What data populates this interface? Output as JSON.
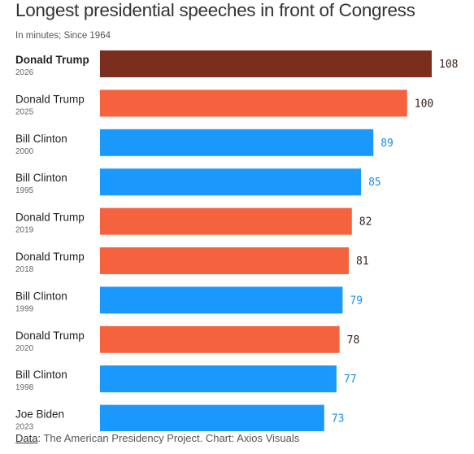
{
  "title": "Longest presidential speeches in front of Congress",
  "subtitle": "In minutes; Since 1964",
  "footer": {
    "data_link": "Data",
    "text": ": The American Presidency Project. Chart: Axios Visuals"
  },
  "colors": {
    "highlight": "#7b2d1e",
    "trump": "#f4623e",
    "clinton": "#1b98fb",
    "biden": "#1b98fb"
  },
  "chart_data": {
    "type": "bar",
    "orientation": "horizontal",
    "title": "Longest presidential speeches in front of Congress",
    "subtitle": "In minutes; Since 1964",
    "rows": [
      {
        "name": "Donald Trump",
        "year": "2026",
        "value": 108,
        "color": "#7b2d1e",
        "value_color": "#3a2018",
        "bold": true
      },
      {
        "name": "Donald Trump",
        "year": "2025",
        "value": 100,
        "color": "#f4623e",
        "value_color": "#3a2018",
        "bold": false
      },
      {
        "name": "Bill Clinton",
        "year": "2000",
        "value": 89,
        "color": "#1b98fb",
        "value_color": "#1b8ee6",
        "bold": false
      },
      {
        "name": "Bill Clinton",
        "year": "1995",
        "value": 85,
        "color": "#1b98fb",
        "value_color": "#1b8ee6",
        "bold": false
      },
      {
        "name": "Donald Trump",
        "year": "2019",
        "value": 82,
        "color": "#f4623e",
        "value_color": "#3a2018",
        "bold": false
      },
      {
        "name": "Donald Trump",
        "year": "2018",
        "value": 81,
        "color": "#f4623e",
        "value_color": "#3a2018",
        "bold": false
      },
      {
        "name": "Bill Clinton",
        "year": "1999",
        "value": 79,
        "color": "#1b98fb",
        "value_color": "#1b8ee6",
        "bold": false
      },
      {
        "name": "Donald Trump",
        "year": "2020",
        "value": 78,
        "color": "#f4623e",
        "value_color": "#3a2018",
        "bold": false
      },
      {
        "name": "Bill Clinton",
        "year": "1998",
        "value": 77,
        "color": "#1b98fb",
        "value_color": "#1b8ee6",
        "bold": false
      },
      {
        "name": "Joe Biden",
        "year": "2023",
        "value": 73,
        "color": "#1b98fb",
        "value_color": "#1b8ee6",
        "bold": false
      }
    ],
    "xlim": [
      0,
      108
    ],
    "grid": false,
    "legend": "none"
  }
}
